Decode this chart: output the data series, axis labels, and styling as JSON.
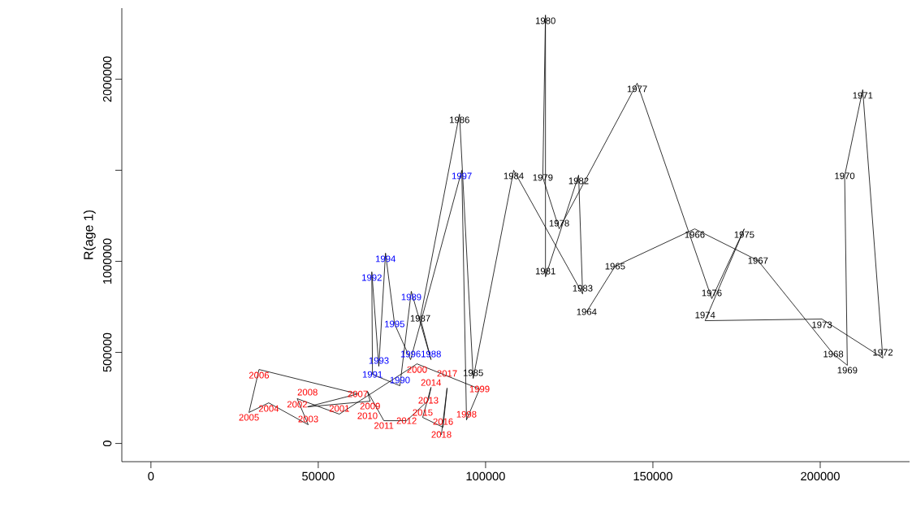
{
  "chart_data": {
    "type": "line",
    "ylabel": "R(age 1)",
    "xlim": [
      -8700,
      226700
    ],
    "ylim": [
      -100000,
      2390000
    ],
    "xticks": [
      0,
      50000,
      100000,
      150000,
      200000
    ],
    "yticks": [
      0,
      500000,
      1000000,
      {
        "value": 1500000,
        "label": null
      },
      2000000
    ],
    "marker": "none",
    "line_style": "solid",
    "annotations": [
      {
        "text": "1964",
        "x": 130200,
        "y": 723000
      },
      {
        "text": "1965",
        "x": 138700,
        "y": 973000
      },
      {
        "text": "1966",
        "x": 162500,
        "y": 1178000
      },
      {
        "text": "1967",
        "x": 181400,
        "y": 1004000
      },
      {
        "text": "1968",
        "x": 203900,
        "y": 491000
      },
      {
        "text": "1969",
        "x": 208100,
        "y": 429000
      },
      {
        "text": "1970",
        "x": 207300,
        "y": 1469000
      },
      {
        "text": "1971",
        "x": 212700,
        "y": 1942000
      },
      {
        "text": "1972",
        "x": 218700,
        "y": 469000
      },
      {
        "text": "1973",
        "x": 200500,
        "y": 683000
      },
      {
        "text": "1974",
        "x": 165600,
        "y": 674000
      },
      {
        "text": "1975",
        "x": 177300,
        "y": 1178000
      },
      {
        "text": "1976",
        "x": 167600,
        "y": 795000
      },
      {
        "text": "1977",
        "x": 145300,
        "y": 1978000
      },
      {
        "text": "1978",
        "x": 122000,
        "y": 1178000
      },
      {
        "text": "1979",
        "x": 117100,
        "y": 1460000
      },
      {
        "text": "1980",
        "x": 117900,
        "y": 2352000
      },
      {
        "text": "1981",
        "x": 117900,
        "y": 915000
      },
      {
        "text": "1982",
        "x": 127800,
        "y": 1473000
      },
      {
        "text": "1983",
        "x": 129000,
        "y": 821000
      },
      {
        "text": "1984",
        "x": 108400,
        "y": 1500000
      },
      {
        "text": "1985",
        "x": 96300,
        "y": 357000
      },
      {
        "text": "1986",
        "x": 92200,
        "y": 1808000
      },
      {
        "text": "1987",
        "x": 80500,
        "y": 687000
      },
      {
        "text": "1988",
        "x": 83700,
        "y": 460000
      },
      {
        "text": "1989",
        "x": 77800,
        "y": 835000
      },
      {
        "text": "1990",
        "x": 74400,
        "y": 317000
      },
      {
        "text": "1991",
        "x": 66200,
        "y": 379000
      },
      {
        "text": "1992",
        "x": 66000,
        "y": 942000
      },
      {
        "text": "1993",
        "x": 68100,
        "y": 424000
      },
      {
        "text": "1994",
        "x": 70100,
        "y": 1045000
      },
      {
        "text": "1995",
        "x": 72800,
        "y": 656000
      },
      {
        "text": "1996",
        "x": 77600,
        "y": 460000
      },
      {
        "text": "1997",
        "x": 92900,
        "y": 1500000
      },
      {
        "text": "1998",
        "x": 94300,
        "y": 129000
      },
      {
        "text": "1999",
        "x": 98200,
        "y": 299000
      },
      {
        "text": "2000",
        "x": 79500,
        "y": 437000
      },
      {
        "text": "2001",
        "x": 56300,
        "y": 161000
      },
      {
        "text": "2002",
        "x": 43700,
        "y": 246000
      },
      {
        "text": "2003",
        "x": 47000,
        "y": 103000
      },
      {
        "text": "2004",
        "x": 35200,
        "y": 223000
      },
      {
        "text": "2005",
        "x": 29300,
        "y": 170000
      },
      {
        "text": "2006",
        "x": 32300,
        "y": 406000
      },
      {
        "text": "2007",
        "x": 61800,
        "y": 272000
      },
      {
        "text": "2008",
        "x": 46800,
        "y": 201000
      },
      {
        "text": "2009",
        "x": 65500,
        "y": 232000
      },
      {
        "text": "2010",
        "x": 64700,
        "y": 286000
      },
      {
        "text": "2011",
        "x": 69600,
        "y": 125000
      },
      {
        "text": "2012",
        "x": 76400,
        "y": 125000
      },
      {
        "text": "2013",
        "x": 82900,
        "y": 237000
      },
      {
        "text": "2014",
        "x": 83700,
        "y": 308000
      },
      {
        "text": "2015",
        "x": 81200,
        "y": 143000
      },
      {
        "text": "2016",
        "x": 87300,
        "y": 89000
      },
      {
        "text": "2017",
        "x": 88500,
        "y": 304000
      },
      {
        "text": "2018",
        "x": 86800,
        "y": 49000
      }
    ],
    "series": [
      {
        "color": "#000000",
        "x": [
          130200,
          138700,
          162500,
          181400,
          203900,
          208100,
          207300,
          212700,
          218700,
          200500,
          165600,
          177300,
          167600,
          145300,
          122000,
          117100,
          117900,
          117900,
          127800,
          129000,
          108400,
          96300,
          92200,
          80500,
          83700,
          77800,
          74400,
          66200,
          66000,
          68100,
          70100,
          72800,
          77600,
          92900,
          94300,
          98200,
          79500,
          56300,
          43700,
          47000,
          35200,
          29300,
          32300,
          61800,
          46800,
          65500,
          64700,
          69600,
          76400,
          82900,
          83700,
          81200,
          87300,
          88500,
          86800
        ],
        "values": [
          723000,
          973000,
          1178000,
          1004000,
          491000,
          429000,
          1469000,
          1942000,
          469000,
          683000,
          674000,
          1178000,
          795000,
          1978000,
          1178000,
          1460000,
          2352000,
          915000,
          1473000,
          821000,
          1500000,
          357000,
          1808000,
          687000,
          460000,
          835000,
          317000,
          379000,
          942000,
          424000,
          1045000,
          656000,
          460000,
          1500000,
          129000,
          299000,
          437000,
          161000,
          246000,
          103000,
          223000,
          170000,
          406000,
          272000,
          201000,
          232000,
          286000,
          125000,
          125000,
          237000,
          308000,
          143000,
          89000,
          304000,
          49000
        ],
        "colors": [
          "#000000",
          "#000000",
          "#000000",
          "#000000",
          "#000000",
          "#000000",
          "#000000",
          "#000000",
          "#000000",
          "#000000",
          "#000000",
          "#000000",
          "#000000",
          "#000000",
          "#000000",
          "#000000",
          "#000000",
          "#000000",
          "#000000",
          "#000000",
          "#000000",
          "#000000",
          "#000000",
          "#000000",
          "#0000ff",
          "#0000ff",
          "#0000ff",
          "#0000ff",
          "#0000ff",
          "#0000ff",
          "#0000ff",
          "#0000ff",
          "#0000ff",
          "#0000ff",
          "#ff0000",
          "#ff0000",
          "#ff0000",
          "#ff0000",
          "#ff0000",
          "#ff0000",
          "#ff0000",
          "#ff0000",
          "#ff0000",
          "#ff0000",
          "#ff0000",
          "#ff0000",
          "#ff0000",
          "#ff0000",
          "#ff0000",
          "#ff0000",
          "#ff0000",
          "#ff0000",
          "#ff0000",
          "#ff0000",
          "#ff0000"
        ]
      }
    ]
  }
}
